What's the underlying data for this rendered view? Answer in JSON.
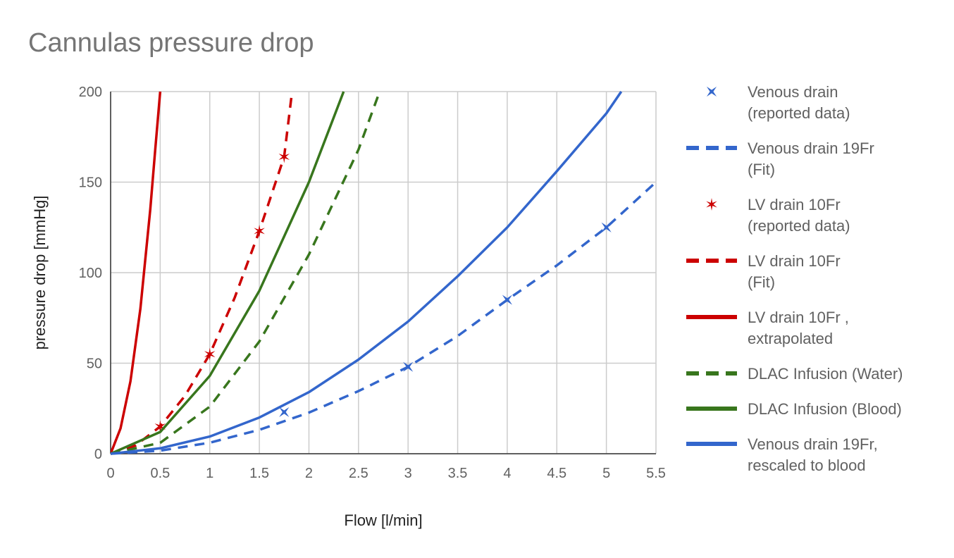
{
  "chart_data": {
    "type": "line",
    "title": "Cannulas pressure drop",
    "xlabel": "Flow [l/min]",
    "ylabel": "pressure drop [mmHg]",
    "xlim": [
      0,
      5.5
    ],
    "ylim": [
      0,
      200
    ],
    "x_ticks": [
      "0",
      "0.5",
      "1",
      "1.5",
      "2",
      "2.5",
      "3",
      "3.5",
      "4",
      "4.5",
      "5",
      "5.5"
    ],
    "y_ticks": [
      "0",
      "50",
      "100",
      "150",
      "200"
    ],
    "grid": true,
    "legend_position": "right",
    "series": [
      {
        "name_lines": [
          "Venous drain",
          "(reported data)"
        ],
        "style": "markers",
        "color": "#3366cc",
        "points": [
          [
            1.75,
            23
          ],
          [
            3,
            48
          ],
          [
            4,
            85
          ],
          [
            5,
            125
          ]
        ]
      },
      {
        "name_lines": [
          "Venous drain 19Fr",
          "(Fit)"
        ],
        "style": "dashed",
        "color": "#3366cc",
        "points": [
          [
            0,
            0
          ],
          [
            0.5,
            1.7
          ],
          [
            1,
            6.1
          ],
          [
            1.5,
            13.2
          ],
          [
            2,
            22.7
          ],
          [
            2.5,
            34.6
          ],
          [
            3,
            48
          ],
          [
            3.5,
            65
          ],
          [
            4,
            85
          ],
          [
            4.5,
            104
          ],
          [
            5,
            125
          ],
          [
            5.5,
            150
          ]
        ]
      },
      {
        "name_lines": [
          "LV drain 10Fr",
          "(reported data)"
        ],
        "style": "markers",
        "color": "#cc0000",
        "points": [
          [
            0.5,
            15
          ],
          [
            1,
            55
          ],
          [
            1.5,
            123
          ],
          [
            1.75,
            164
          ]
        ]
      },
      {
        "name_lines": [
          "LV drain 10Fr",
          "(Fit)"
        ],
        "style": "dashed",
        "color": "#cc0000",
        "points": [
          [
            0,
            0
          ],
          [
            0.25,
            4.5
          ],
          [
            0.5,
            15
          ],
          [
            0.75,
            32
          ],
          [
            1,
            55
          ],
          [
            1.25,
            86
          ],
          [
            1.5,
            123
          ],
          [
            1.75,
            164
          ],
          [
            1.83,
            200
          ]
        ]
      },
      {
        "name_lines": [
          "LV drain 10Fr ,",
          "extrapolated"
        ],
        "style": "solid",
        "color": "#cc0000",
        "points": [
          [
            0,
            0
          ],
          [
            0.1,
            14
          ],
          [
            0.2,
            40
          ],
          [
            0.3,
            80
          ],
          [
            0.4,
            135
          ],
          [
            0.45,
            168
          ],
          [
            0.5,
            200
          ]
        ]
      },
      {
        "name_lines": [
          "DLAC Infusion (Water)"
        ],
        "style": "dashed",
        "color": "#38761d",
        "points": [
          [
            0,
            0
          ],
          [
            0.5,
            6
          ],
          [
            1,
            26
          ],
          [
            1.5,
            62
          ],
          [
            2,
            110
          ],
          [
            2.5,
            168
          ],
          [
            2.7,
            198
          ]
        ]
      },
      {
        "name_lines": [
          "DLAC Infusion (Blood)"
        ],
        "style": "solid",
        "color": "#38761d",
        "points": [
          [
            0,
            0
          ],
          [
            0.5,
            12
          ],
          [
            1,
            43
          ],
          [
            1.5,
            90
          ],
          [
            2,
            150
          ],
          [
            2.35,
            200
          ]
        ]
      },
      {
        "name_lines": [
          "Venous drain 19Fr,",
          "rescaled to blood"
        ],
        "style": "solid",
        "color": "#3366cc",
        "points": [
          [
            0,
            0
          ],
          [
            0.5,
            3
          ],
          [
            1,
            9.5
          ],
          [
            1.5,
            20
          ],
          [
            2,
            34
          ],
          [
            2.5,
            52
          ],
          [
            3,
            73
          ],
          [
            3.5,
            98
          ],
          [
            4,
            125
          ],
          [
            4.5,
            156
          ],
          [
            5,
            188
          ],
          [
            5.15,
            200
          ]
        ]
      }
    ]
  }
}
